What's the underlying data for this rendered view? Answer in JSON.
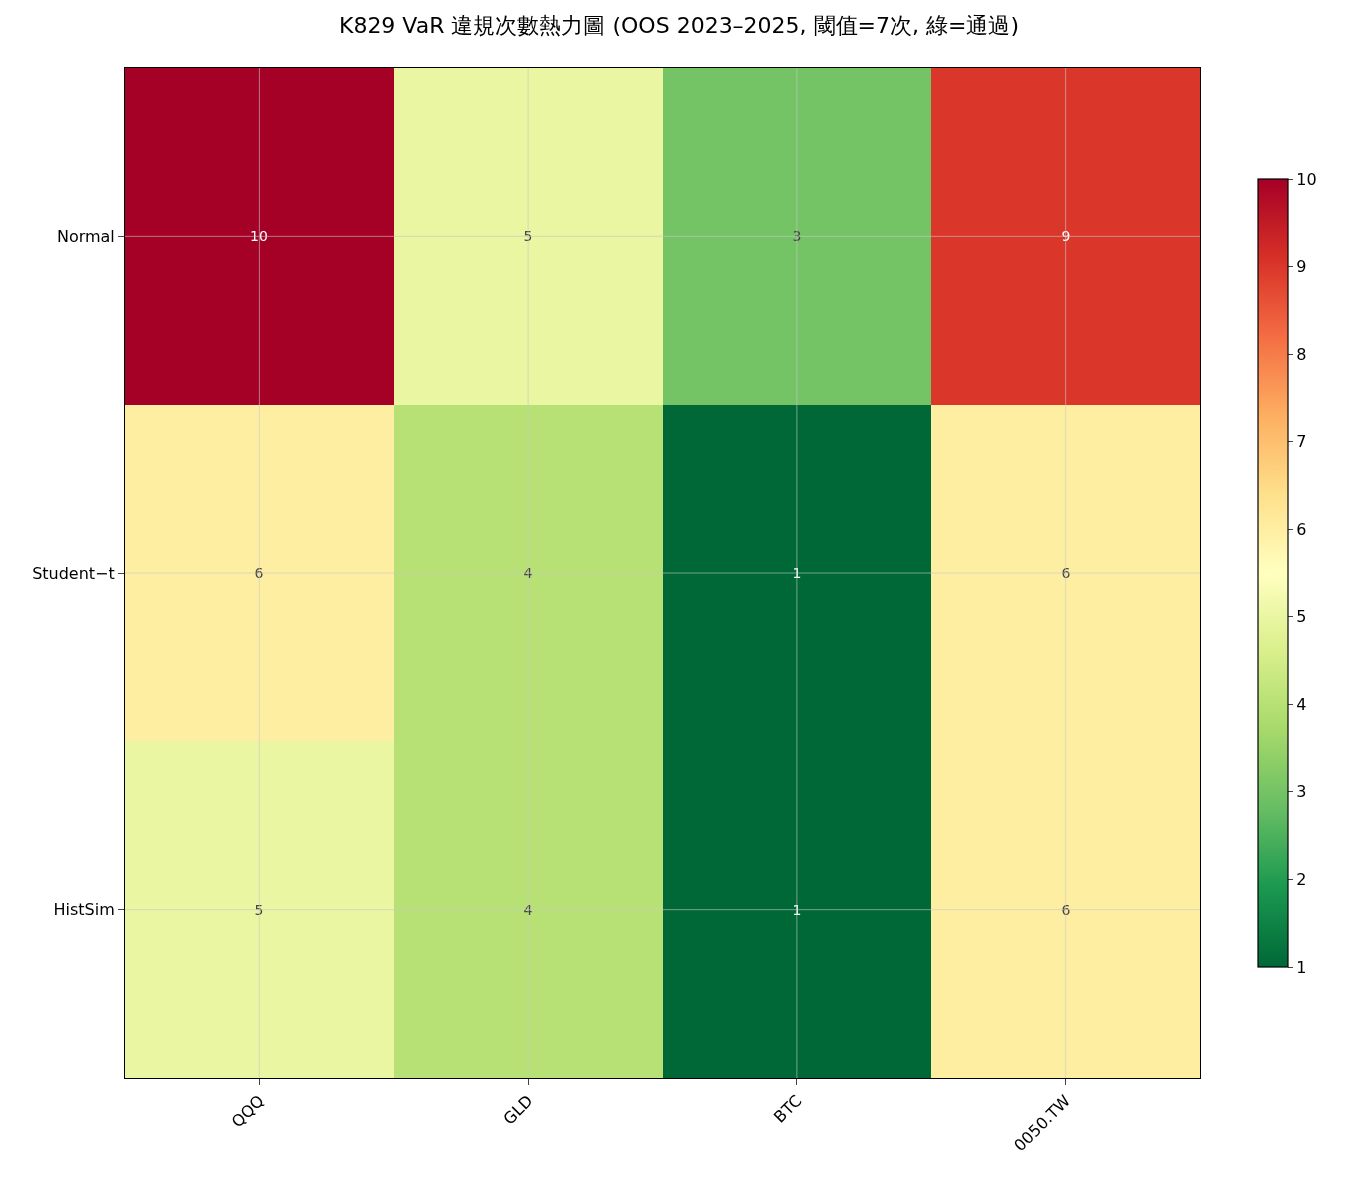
{
  "chart_data": {
    "type": "heatmap",
    "title": "K829 VaR 違規次數熱力圖 (OOS 2023–2025, 閾值=7次, 綠=通過)",
    "categories": [
      "QQQ",
      "GLD",
      "BTC",
      "0050.TW"
    ],
    "y_categories": [
      "Normal",
      "Student−t",
      "HistSim"
    ],
    "cells": [
      [
        10,
        5,
        3,
        9
      ],
      [
        6,
        4,
        1,
        6
      ],
      [
        5,
        4,
        1,
        6
      ]
    ],
    "data_labels": true,
    "grid": true,
    "clim": [
      1,
      10
    ],
    "cticks": [
      1,
      2,
      3,
      4,
      5,
      6,
      7,
      8,
      9,
      10
    ]
  }
}
